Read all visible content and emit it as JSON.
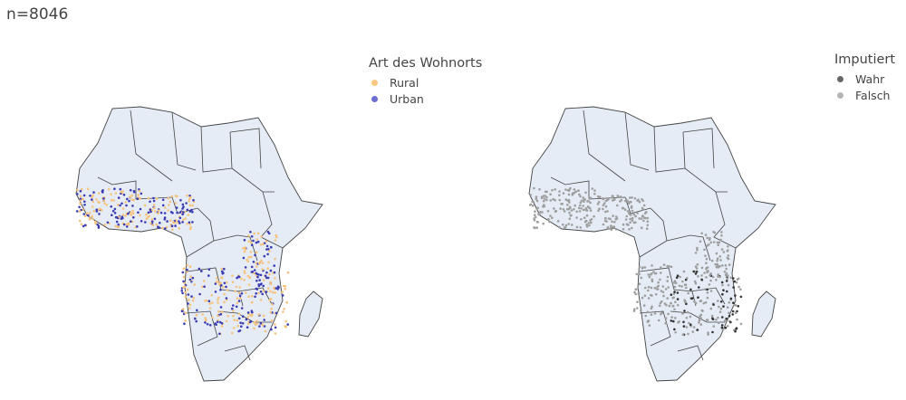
{
  "page": {
    "title": "n=8046"
  },
  "maps": [
    {
      "legend": {
        "title": "Art des Wohnorts",
        "items": [
          {
            "label": "Rural",
            "color": "#fbc881"
          },
          {
            "label": "Urban",
            "color": "#6b6fd1"
          }
        ]
      }
    },
    {
      "legend": {
        "title": "Imputiert",
        "items": [
          {
            "label": "Wahr",
            "color": "#666666"
          },
          {
            "label": "Falsch",
            "color": "#b5b5b5"
          }
        ]
      }
    }
  ],
  "style": {
    "land_color": "#e5ecf6",
    "border_color": "#444444",
    "rural_color": "#f7c27b",
    "urban_color": "#3b3bb3",
    "imputed_true_color": "#333333",
    "imputed_false_color": "#9e9e9e"
  }
}
